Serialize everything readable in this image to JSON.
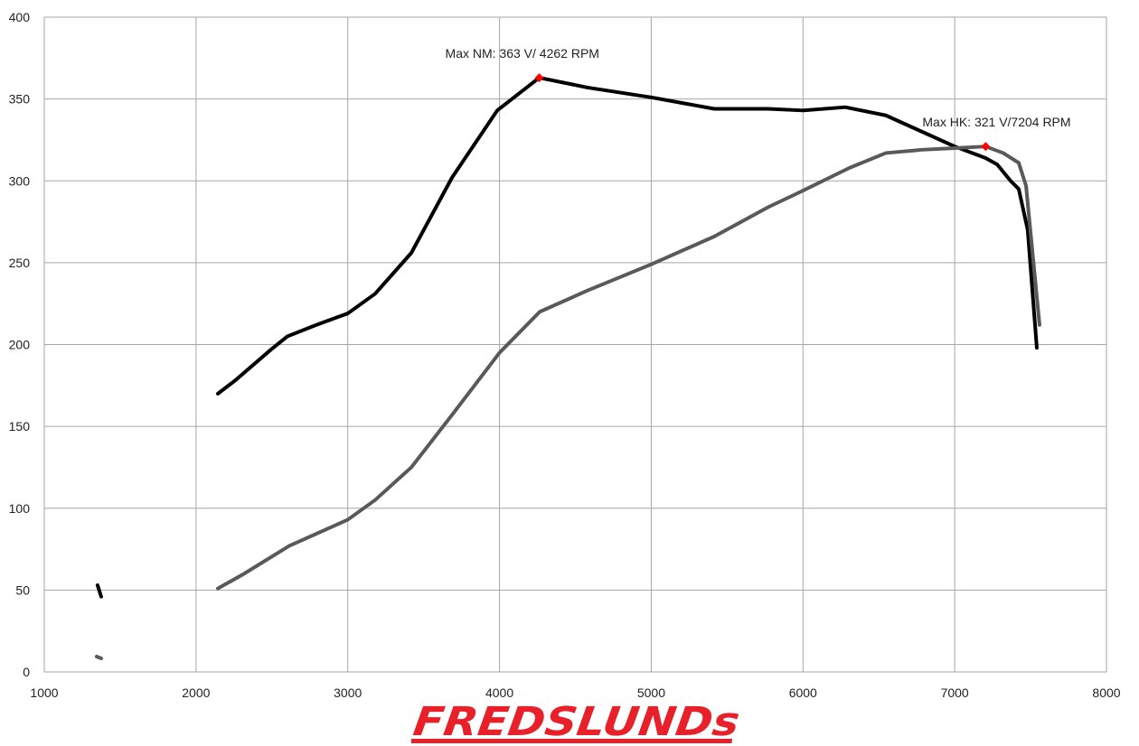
{
  "chart_data": {
    "type": "line",
    "title": "",
    "xlabel": "",
    "ylabel": "",
    "xlim": [
      1000,
      8000
    ],
    "ylim": [
      0,
      400
    ],
    "xticks": [
      1000,
      2000,
      3000,
      4000,
      5000,
      6000,
      7000,
      8000
    ],
    "yticks": [
      0,
      50,
      100,
      150,
      200,
      250,
      300,
      350,
      400
    ],
    "grid": true,
    "series": [
      {
        "color": "#000000",
        "x": [
          2144,
          2257,
          2495,
          2602,
          2793,
          3000,
          3180,
          3419,
          3687,
          3985,
          4262,
          4580,
          5000,
          5415,
          5772,
          6000,
          6278,
          6546,
          6785,
          7000,
          7202,
          7280,
          7368,
          7422,
          7481,
          7541
        ],
        "y": [
          170,
          178,
          197,
          205,
          212,
          219,
          231,
          256,
          302,
          343,
          363,
          357,
          351,
          344,
          344,
          343,
          345,
          340,
          330,
          321,
          314,
          310,
          300,
          295,
          270,
          198
        ]
      },
      {
        "color": "#595959",
        "x": [
          2144,
          2317,
          2614,
          3000,
          3180,
          3419,
          3687,
          4000,
          4265,
          4580,
          5000,
          5415,
          5772,
          6000,
          6308,
          6546,
          6785,
          7000,
          7204,
          7320,
          7422,
          7470,
          7559
        ],
        "y": [
          51,
          60,
          77,
          93,
          105,
          125,
          157,
          195,
          220,
          233,
          249,
          266,
          284,
          294,
          308,
          317,
          319,
          320,
          321,
          317,
          311,
          297,
          212
        ]
      },
      {
        "color": "#000000",
        "x": [
          1351,
          1375
        ],
        "y": [
          53,
          46
        ]
      },
      {
        "color": "#595959",
        "x": [
          1345,
          1375
        ],
        "y": [
          9.4,
          8.3
        ]
      }
    ],
    "annotations": [
      {
        "text": "Max NM: 363 V/ 4262 RPM",
        "x": 4262,
        "y": 363,
        "marker_color": "#ff0000"
      },
      {
        "text": "Max HK: 321 V/7204 RPM",
        "x": 7204,
        "y": 321,
        "marker_color": "#ff0000"
      }
    ]
  },
  "logo": {
    "text": "FREDSLUNDs",
    "color": "#e8202a"
  }
}
